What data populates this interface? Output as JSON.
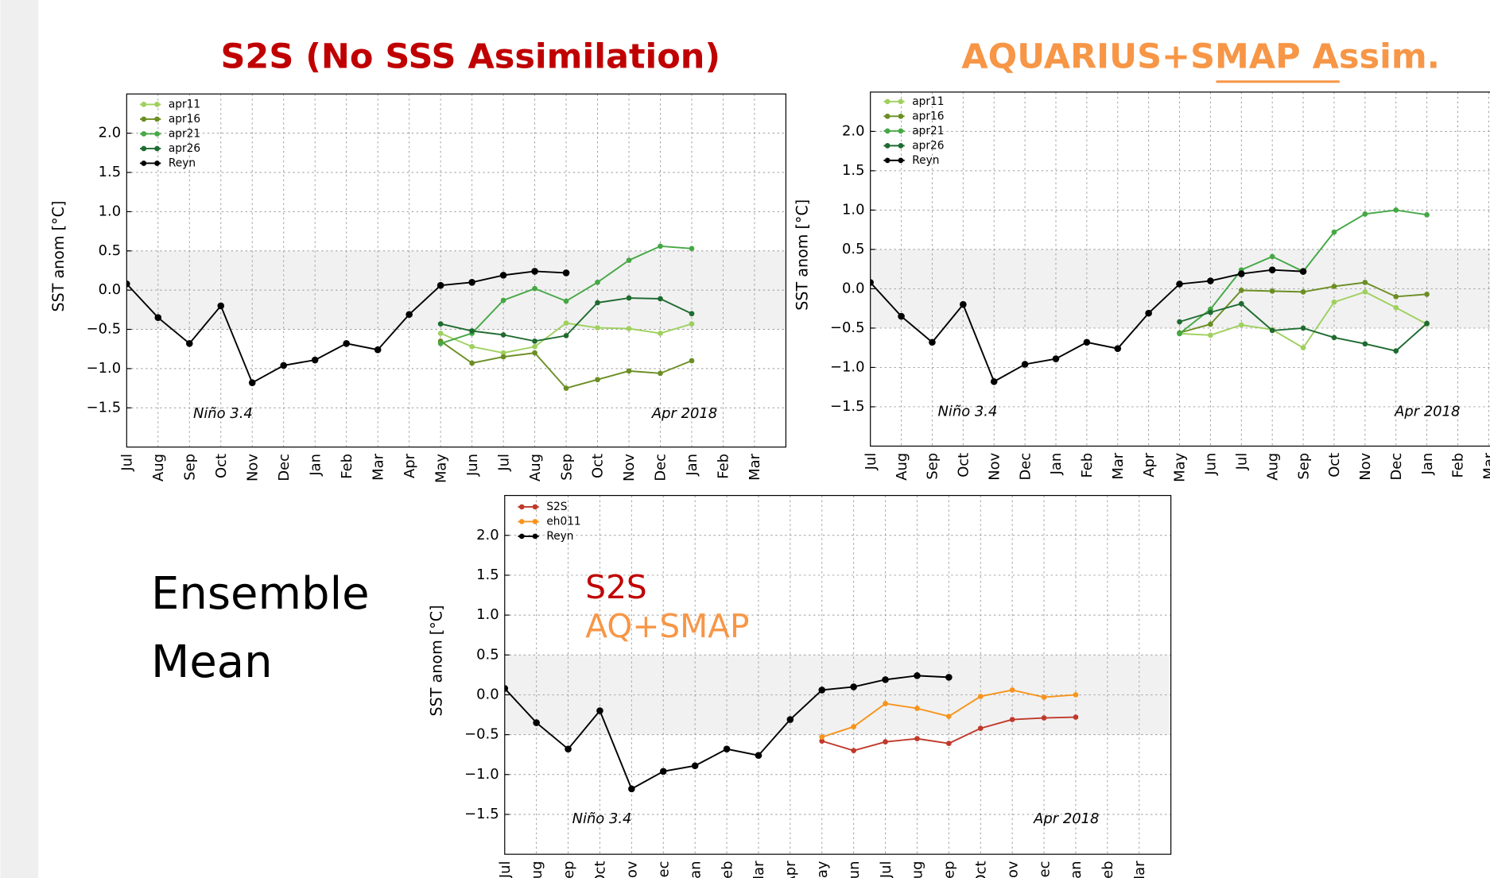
{
  "chart_data": [
    {
      "type": "line",
      "title": "S2S (No SSS Assimilation)",
      "title_color": "#c00000",
      "ylabel": "SST anom [°C]",
      "categories": [
        "Jul",
        "Aug",
        "Sep",
        "Oct",
        "Nov",
        "Dec",
        "Jan",
        "Feb",
        "Mar",
        "Apr",
        "May",
        "Jun",
        "Jul",
        "Aug",
        "Sep",
        "Oct",
        "Nov",
        "Dec",
        "Jan",
        "Feb",
        "Mar"
      ],
      "series": [
        {
          "name": "apr11",
          "color": "#9fd05e",
          "values": [
            null,
            null,
            null,
            null,
            null,
            null,
            null,
            null,
            null,
            null,
            -0.55,
            -0.72,
            -0.8,
            -0.72,
            -0.42,
            -0.48,
            -0.49,
            -0.55,
            -0.43,
            null,
            null
          ]
        },
        {
          "name": "apr16",
          "color": "#6b8e23",
          "values": [
            null,
            null,
            null,
            null,
            null,
            null,
            null,
            null,
            null,
            null,
            -0.65,
            -0.93,
            -0.85,
            -0.8,
            -1.25,
            -1.14,
            -1.03,
            -1.06,
            -0.9,
            null,
            null
          ]
        },
        {
          "name": "apr21",
          "color": "#45a845",
          "values": [
            null,
            null,
            null,
            null,
            null,
            null,
            null,
            null,
            null,
            null,
            -0.68,
            -0.55,
            -0.13,
            0.02,
            -0.14,
            0.1,
            0.38,
            0.56,
            0.53,
            null,
            null
          ]
        },
        {
          "name": "apr26",
          "color": "#1f6b30",
          "values": [
            null,
            null,
            null,
            null,
            null,
            null,
            null,
            null,
            null,
            null,
            -0.43,
            -0.52,
            -0.57,
            -0.65,
            -0.58,
            -0.16,
            -0.1,
            -0.11,
            -0.3,
            null,
            null
          ]
        },
        {
          "name": "Reyn",
          "color": "#000000",
          "values": [
            0.08,
            -0.35,
            -0.68,
            -0.2,
            -1.18,
            -0.96,
            -0.89,
            -0.68,
            -0.76,
            -0.31,
            0.06,
            0.1,
            0.19,
            0.24,
            0.22,
            null,
            null,
            null,
            null,
            null,
            null
          ]
        }
      ],
      "ylim": [
        -2,
        2.5
      ],
      "yticks": [
        {
          "value": -1.5,
          "label": "−1.5"
        },
        {
          "value": -1,
          "label": "−1.0"
        },
        {
          "value": -0.5,
          "label": "−0.5"
        },
        {
          "value": 0,
          "label": "0.0"
        },
        0.5,
        {
          "value": 1,
          "label": "1.0"
        },
        1.5,
        {
          "value": 2,
          "label": "2.0"
        }
      ],
      "band": [
        -0.5,
        0.5
      ],
      "grid": true,
      "legend": "upper left",
      "annotations": [
        "Niño 3.4",
        "Apr 2018"
      ]
    },
    {
      "type": "line",
      "title": "AQUARIUS+SMAP Assim.",
      "title_color": "#f79646",
      "ylabel": "SST anom [°C]",
      "categories": [
        "Jul",
        "Aug",
        "Sep",
        "Oct",
        "Nov",
        "Dec",
        "Jan",
        "Feb",
        "Mar",
        "Apr",
        "May",
        "Jun",
        "Jul",
        "Aug",
        "Sep",
        "Oct",
        "Nov",
        "Dec",
        "Jan",
        "Feb",
        "Mar"
      ],
      "series": [
        {
          "name": "apr11",
          "color": "#9fd05e",
          "values": [
            null,
            null,
            null,
            null,
            null,
            null,
            null,
            null,
            null,
            null,
            -0.57,
            -0.59,
            -0.46,
            -0.52,
            -0.75,
            -0.17,
            -0.04,
            -0.24,
            -0.45,
            null,
            null
          ]
        },
        {
          "name": "apr16",
          "color": "#6b8e23",
          "values": [
            null,
            null,
            null,
            null,
            null,
            null,
            null,
            null,
            null,
            null,
            -0.56,
            -0.45,
            -0.02,
            -0.03,
            -0.04,
            0.03,
            0.08,
            -0.1,
            -0.07,
            null,
            null
          ]
        },
        {
          "name": "apr21",
          "color": "#45a845",
          "values": [
            null,
            null,
            null,
            null,
            null,
            null,
            null,
            null,
            null,
            null,
            -0.57,
            -0.26,
            0.24,
            0.41,
            0.22,
            0.72,
            0.95,
            1.0,
            0.94,
            null,
            null
          ]
        },
        {
          "name": "apr26",
          "color": "#1f6b30",
          "values": [
            null,
            null,
            null,
            null,
            null,
            null,
            null,
            null,
            null,
            null,
            -0.42,
            -0.3,
            -0.19,
            -0.53,
            -0.5,
            -0.62,
            -0.7,
            -0.79,
            -0.44,
            null,
            null
          ]
        },
        {
          "name": "Reyn",
          "color": "#000000",
          "values": [
            0.08,
            -0.35,
            -0.68,
            -0.2,
            -1.18,
            -0.96,
            -0.89,
            -0.68,
            -0.76,
            -0.31,
            0.06,
            0.1,
            0.19,
            0.24,
            0.22,
            null,
            null,
            null,
            null,
            null,
            null
          ]
        }
      ],
      "ylim": [
        -2,
        2.5
      ],
      "yticks": [
        {
          "value": -1.5,
          "label": "−1.5"
        },
        {
          "value": -1,
          "label": "−1.0"
        },
        {
          "value": -0.5,
          "label": "−0.5"
        },
        {
          "value": 0,
          "label": "0.0"
        },
        0.5,
        {
          "value": 1,
          "label": "1.0"
        },
        1.5,
        {
          "value": 2,
          "label": "2.0"
        }
      ],
      "band": [
        -0.5,
        0.5
      ],
      "grid": true,
      "legend": "upper left",
      "annotations": [
        "Niño 3.4",
        "Apr 2018"
      ]
    },
    {
      "type": "line",
      "title": "Ensemble Mean",
      "ylabel": "SST anom [°C]",
      "categories": [
        "Jul",
        "Aug",
        "Sep",
        "Oct",
        "Nov",
        "Dec",
        "Jan",
        "Feb",
        "Mar",
        "Apr",
        "May",
        "Jun",
        "Jul",
        "Aug",
        "Sep",
        "Oct",
        "Nov",
        "Dec",
        "Jan",
        "Feb",
        "Mar"
      ],
      "series": [
        {
          "name": "S2S",
          "color": "#c0392b",
          "values": [
            null,
            null,
            null,
            null,
            null,
            null,
            null,
            null,
            null,
            null,
            -0.58,
            -0.7,
            -0.59,
            -0.55,
            -0.61,
            -0.42,
            -0.31,
            -0.29,
            -0.28,
            null,
            null
          ]
        },
        {
          "name": "eh011",
          "color": "#f7941d",
          "values": [
            null,
            null,
            null,
            null,
            null,
            null,
            null,
            null,
            null,
            null,
            -0.53,
            -0.4,
            -0.11,
            -0.17,
            -0.27,
            -0.02,
            0.06,
            -0.03,
            0.0,
            null,
            null
          ]
        },
        {
          "name": "Reyn",
          "color": "#000000",
          "values": [
            0.08,
            -0.35,
            -0.68,
            -0.2,
            -1.18,
            -0.96,
            -0.89,
            -0.68,
            -0.76,
            -0.31,
            0.06,
            0.1,
            0.19,
            0.24,
            0.22,
            null,
            null,
            null,
            null,
            null,
            null
          ]
        }
      ],
      "ylim": [
        -2,
        2.5
      ],
      "yticks": [
        {
          "value": -1.5,
          "label": "−1.5"
        },
        {
          "value": -1,
          "label": "−1.0"
        },
        {
          "value": -0.5,
          "label": "−0.5"
        },
        {
          "value": 0,
          "label": "0.0"
        },
        0.5,
        {
          "value": 1,
          "label": "1.0"
        },
        1.5,
        {
          "value": 2,
          "label": "2.0"
        }
      ],
      "band": [
        -0.5,
        0.5
      ],
      "grid": true,
      "legend": "upper left",
      "annotations": [
        "Niño 3.4",
        "Apr 2018"
      ],
      "overlay_labels": [
        "S2S",
        "AQ+SMAP"
      ],
      "overlay_colors": [
        "#c00000",
        "#f79646"
      ]
    }
  ]
}
